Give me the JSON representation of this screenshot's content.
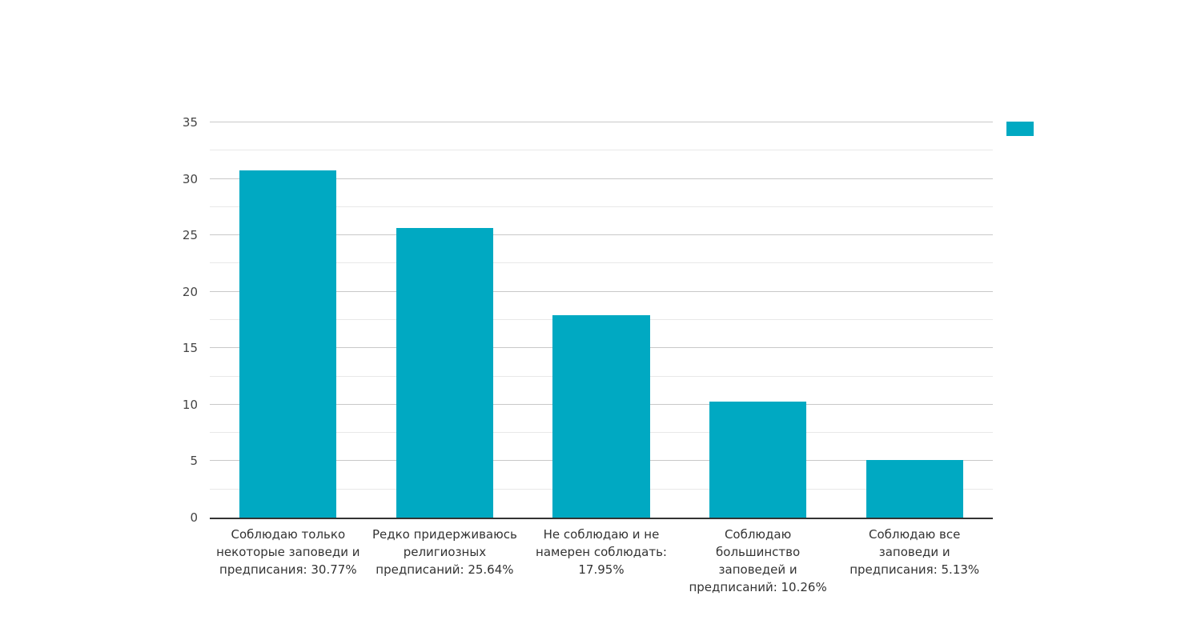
{
  "chart_data": {
    "type": "bar",
    "title": "",
    "xlabel": "",
    "ylabel": "",
    "categories": [
      "Соблюдаю только некоторые заповеди и предписания: 30.77%",
      "Редко придерживаюсь религиозных предписаний: 25.64%",
      "Не соблюдаю и не намерен соблюдать: 17.95%",
      "Соблюдаю большинство заповедей и предписаний: 10.26%",
      "Соблюдаю все заповеди и предписания: 5.13%"
    ],
    "category_lines": [
      [
        "Соблюдаю только",
        "некоторые заповеди и",
        "предписания: 30.77%"
      ],
      [
        "Редко придерживаюсь",
        "религиозных",
        "предписаний: 25.64%"
      ],
      [
        "Не соблюдаю и не",
        "намерен соблюдать:",
        "17.95%"
      ],
      [
        "Соблюдаю",
        "большинство",
        "заповедей и",
        "предписаний: 10.26%"
      ],
      [
        "Соблюдаю все",
        "заповеди и",
        "предписания: 5.13%"
      ]
    ],
    "values": [
      30.77,
      25.64,
      17.95,
      10.26,
      5.13
    ],
    "ylim": [
      0,
      35
    ],
    "yticks": [
      0,
      5,
      10,
      15,
      20,
      25,
      30,
      35
    ],
    "minor_yticks": [
      2.5,
      7.5,
      12.5,
      17.5,
      22.5,
      27.5,
      32.5
    ],
    "grid": true,
    "legend": {
      "visible": true,
      "label": "",
      "position": "top-right"
    }
  },
  "colors": {
    "bar": "#00a9c2",
    "grid_major": "#c9c9c9",
    "grid_minor": "#e8e8e8",
    "axis_line": "#333333",
    "tick_label": "#444444",
    "category_label": "#333333",
    "background": "#ffffff"
  }
}
